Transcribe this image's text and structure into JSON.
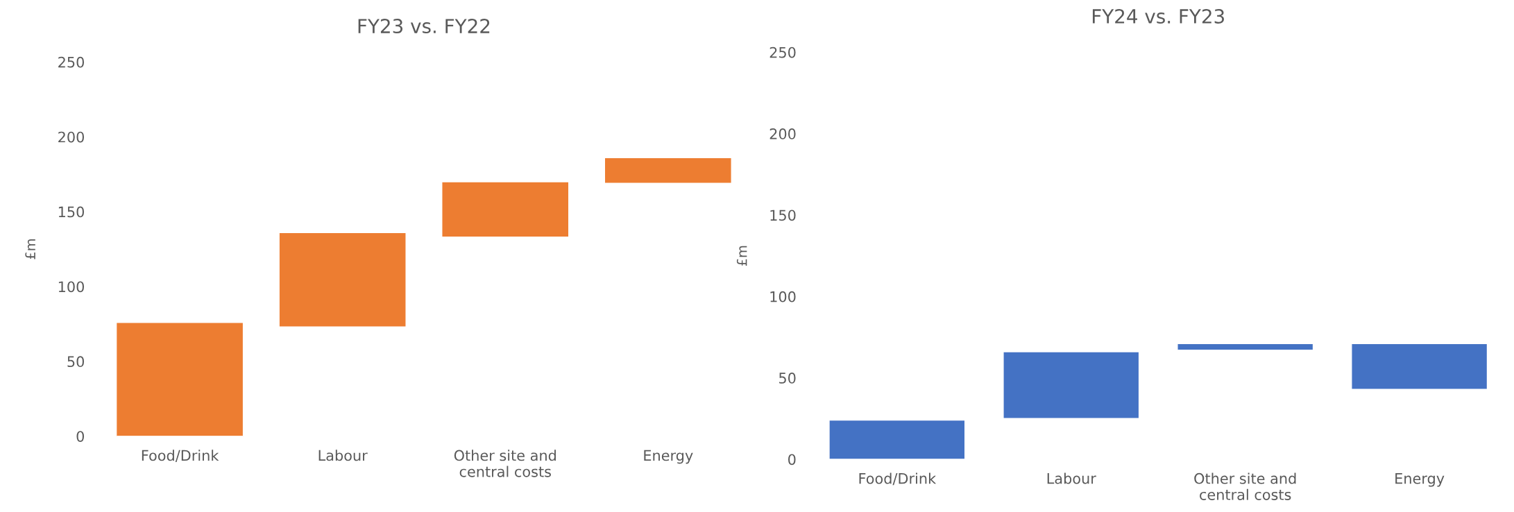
{
  "chart_data": [
    {
      "type": "bar",
      "title": "FY23 vs. FY22",
      "ylabel": "£m",
      "categories": [
        "Food/Drink",
        "Labour",
        "Other site and\ncentral costs",
        "Energy"
      ],
      "values": [
        76,
        63,
        37,
        17
      ],
      "base": [
        0,
        73,
        133,
        169
      ],
      "color": "#ed7d31",
      "ylim": [
        0,
        250
      ],
      "yticks": [
        0,
        50,
        100,
        150,
        200,
        250
      ],
      "grid": false,
      "legend": false
    },
    {
      "type": "bar",
      "title": "FY24 vs. FY23",
      "ylabel": "£m",
      "categories": [
        "Food/Drink",
        "Labour",
        "Other site and\ncentral costs",
        "Energy"
      ],
      "values": [
        24,
        41,
        4,
        28
      ],
      "base": [
        0,
        25,
        67,
        43
      ],
      "color": "#4472c4",
      "ylim": [
        0,
        250
      ],
      "yticks": [
        0,
        50,
        100,
        150,
        200,
        250
      ],
      "grid": false,
      "legend": false
    }
  ]
}
